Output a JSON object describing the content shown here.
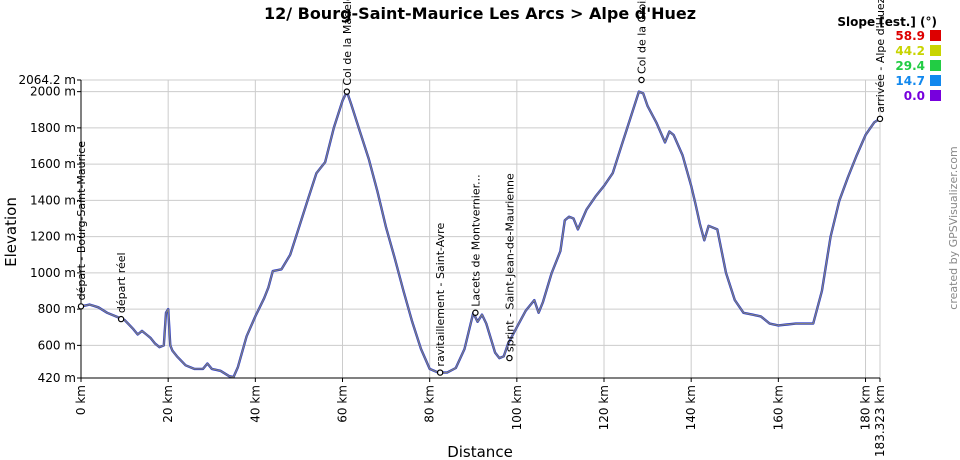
{
  "chart_data": {
    "type": "line",
    "title": "12/ Bourg-Saint-Maurice Les Arcs > Alpe d'Huez",
    "xlabel": "Distance",
    "ylabel": "Elevation",
    "xlim": [
      0,
      183.323
    ],
    "ylim": [
      420,
      2064.2
    ],
    "x_ticks": [
      {
        "value": 0,
        "label": "0 km"
      },
      {
        "value": 20,
        "label": "20 km"
      },
      {
        "value": 40,
        "label": "40 km"
      },
      {
        "value": 60,
        "label": "60 km"
      },
      {
        "value": 80,
        "label": "80 km"
      },
      {
        "value": 100,
        "label": "100 km"
      },
      {
        "value": 120,
        "label": "120 km"
      },
      {
        "value": 140,
        "label": "140 km"
      },
      {
        "value": 160,
        "label": "160 km"
      },
      {
        "value": 180,
        "label": "180 km"
      },
      {
        "value": 183.323,
        "label": "183.323 km"
      }
    ],
    "y_ticks": [
      {
        "value": 420,
        "label": "420 m"
      },
      {
        "value": 600,
        "label": "600 m"
      },
      {
        "value": 800,
        "label": "800 m"
      },
      {
        "value": 1000,
        "label": "1000 m"
      },
      {
        "value": 1200,
        "label": "1200 m"
      },
      {
        "value": 1400,
        "label": "1400 m"
      },
      {
        "value": 1600,
        "label": "1600 m"
      },
      {
        "value": 1800,
        "label": "1800 m"
      },
      {
        "value": 2000,
        "label": "2000 m"
      },
      {
        "value": 2064.2,
        "label": "2064.2 m"
      }
    ],
    "grid": true,
    "series": [
      {
        "x": [
          0,
          2,
          4,
          6,
          8,
          10,
          12,
          13,
          14,
          15,
          16,
          17,
          18,
          19,
          19.5,
          20,
          20.5,
          21,
          22,
          24,
          26,
          28,
          29,
          30,
          32,
          34,
          35,
          36,
          38,
          40,
          42,
          43,
          44,
          46,
          48,
          50,
          52,
          54,
          55,
          56,
          58,
          60,
          61,
          62,
          64,
          66,
          68,
          70,
          72,
          74,
          76,
          78,
          80,
          82,
          84,
          86,
          88,
          89,
          90,
          91,
          92,
          93,
          94,
          95,
          96,
          97,
          98,
          100,
          102,
          104,
          105,
          106,
          108,
          110,
          111,
          112,
          113,
          114,
          116,
          118,
          120,
          122,
          124,
          126,
          128,
          129,
          130,
          132,
          134,
          135,
          136,
          138,
          140,
          141,
          142,
          143,
          144,
          146,
          148,
          150,
          152,
          154,
          156,
          158,
          160,
          162,
          164,
          166,
          168,
          170,
          172,
          174,
          176,
          178,
          180,
          182,
          183.323
        ],
        "y": [
          815,
          825,
          810,
          780,
          760,
          740,
          690,
          660,
          680,
          660,
          640,
          610,
          590,
          600,
          780,
          800,
          600,
          570,
          540,
          490,
          470,
          470,
          500,
          470,
          460,
          430,
          425,
          480,
          650,
          760,
          860,
          920,
          1010,
          1020,
          1100,
          1250,
          1400,
          1550,
          1580,
          1610,
          1800,
          1950,
          2000,
          1930,
          1780,
          1630,
          1450,
          1250,
          1080,
          900,
          730,
          580,
          470,
          450,
          450,
          475,
          580,
          680,
          780,
          730,
          770,
          720,
          640,
          560,
          530,
          540,
          610,
          700,
          790,
          850,
          780,
          840,
          1000,
          1120,
          1290,
          1310,
          1300,
          1240,
          1350,
          1420,
          1480,
          1550,
          1700,
          1850,
          2000,
          1990,
          1920,
          1830,
          1720,
          1780,
          1760,
          1650,
          1480,
          1380,
          1270,
          1180,
          1260,
          1240,
          1000,
          850,
          780,
          770,
          760,
          720,
          710,
          715,
          720,
          720,
          720,
          900,
          1200,
          1400,
          1530,
          1650,
          1760,
          1830,
          1850
        ]
      }
    ],
    "waypoints": [
      {
        "x": 0,
        "y": 815,
        "label": "départ - Bourg-Saint-Maurice"
      },
      {
        "x": 9.2,
        "y": 745,
        "label": "départ réel"
      },
      {
        "x": 61,
        "y": 2000,
        "label": "Col de la Madeleine"
      },
      {
        "x": 82.4,
        "y": 450,
        "label": "ravitaillement - Saint-Avre"
      },
      {
        "x": 90.5,
        "y": 780,
        "label": "Lacets de Montvernier..."
      },
      {
        "x": 98.3,
        "y": 530,
        "label": "sprint - Saint-Jean-de-Maurienne"
      },
      {
        "x": 128.6,
        "y": 2064.2,
        "label": "Col de la Croix de Fer"
      },
      {
        "x": 183.323,
        "y": 1850,
        "label": "arrivée - Alpe d'Huez"
      }
    ],
    "legend": {
      "position": "top-right",
      "title": "Slope [est.] (°)",
      "items": [
        {
          "value": "58.9",
          "color": "#dd0000"
        },
        {
          "value": "44.2",
          "color": "#c8d400"
        },
        {
          "value": "29.4",
          "color": "#22cc44"
        },
        {
          "value": "14.7",
          "color": "#1188ee"
        },
        {
          "value": "0.0",
          "color": "#7700dd"
        }
      ]
    },
    "colors": {
      "profile": "#808080",
      "profile_accent": "#2233cc",
      "grid": "#cccccc",
      "axis": "#000000"
    }
  },
  "credit": "created by GPSVisualizer.com"
}
